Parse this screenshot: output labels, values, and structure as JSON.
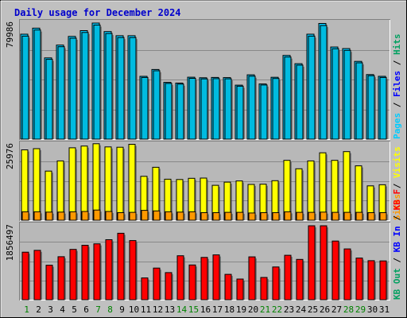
{
  "chart_data": {
    "type": "bar",
    "title": "Daily usage for December 2024",
    "categories": [
      "1",
      "2",
      "3",
      "4",
      "5",
      "6",
      "7",
      "8",
      "9",
      "10",
      "11",
      "12",
      "13",
      "14",
      "15",
      "16",
      "17",
      "18",
      "19",
      "20",
      "21",
      "22",
      "23",
      "24",
      "25",
      "26",
      "27",
      "28",
      "29",
      "30",
      "31"
    ],
    "weekend_categories": [
      "1",
      "7",
      "8",
      "14",
      "15",
      "21",
      "22",
      "28",
      "29"
    ],
    "colors": {
      "background": "#c0c0c0",
      "plot_bg": "#b8b8b8",
      "title": "#0000cc",
      "hits": "#00ccff",
      "files": "#00bbe0",
      "pages": "#00aacc",
      "visits": "#ffff00",
      "sites": "#ff9900",
      "kbf": "#ff0000",
      "weekday_label": "#000000",
      "weekend_label": "#008000"
    },
    "panels": [
      {
        "id": "hits-files-pages",
        "max_label": "79986",
        "ylim": [
          0,
          79986
        ],
        "legend": [
          {
            "text": "Hits",
            "color": "#00a060"
          },
          {
            "text": " / ",
            "color": "#000000"
          },
          {
            "text": "Files",
            "color": "#0000ff"
          },
          {
            "text": " / ",
            "color": "#000000"
          },
          {
            "text": "Pages",
            "color": "#00ccff"
          }
        ],
        "series": [
          {
            "name": "Hits",
            "values": [
              72300,
              76500,
              56000,
              64800,
              70800,
              74800,
              79986,
              74100,
              71300,
              71300,
              43300,
              48000,
              39100,
              38600,
              42700,
              42300,
              42500,
              42400,
              37200,
              44300,
              38000,
              42600,
              57700,
              52000,
              72300,
              79700,
              63500,
              62400,
              53600,
              44500,
              43300
            ]
          },
          {
            "name": "Files",
            "values": [
              71000,
              75200,
              55000,
              63700,
              69600,
              73500,
              78600,
              72800,
              70000,
              70000,
              42500,
              47100,
              38400,
              37900,
              41900,
              41500,
              41700,
              41600,
              36500,
              43400,
              37300,
              41800,
              56600,
              51000,
              71000,
              78300,
              62300,
              61200,
              52600,
              43700,
              42500
            ]
          }
        ]
      },
      {
        "id": "visits-sites",
        "max_label": "25976",
        "ylim": [
          0,
          25976
        ],
        "legend": [
          {
            "text": "Visits",
            "color": "#ffff00"
          },
          {
            "text": " / ",
            "color": "#000000"
          },
          {
            "text": "Sites",
            "color": "#ff9900"
          }
        ],
        "series": [
          {
            "name": "Visits",
            "values": [
              24200,
              24600,
              16900,
              20400,
              24900,
              25500,
              26300,
              25200,
              25100,
              26100,
              15100,
              18200,
              14100,
              14000,
              14400,
              14500,
              12000,
              13100,
              13500,
              12300,
              12400,
              13600,
              20600,
              17700,
              20400,
              23200,
              20600,
              23600,
              18700,
              11800,
              12200
            ]
          },
          {
            "name": "Sites",
            "values": [
              2900,
              2900,
              2800,
              2800,
              2900,
              3000,
              3500,
              3000,
              2600,
              2700,
              3400,
              3200,
              2900,
              2800,
              2900,
              2600,
              2600,
              2700,
              2700,
              2500,
              2600,
              2600,
              2900,
              2700,
              2700,
              2800,
              2700,
              2700,
              2700,
              2600,
              2600
            ]
          }
        ]
      },
      {
        "id": "kbf",
        "max_label": "1856497",
        "ylim": [
          0,
          1856497
        ],
        "legend": [
          {
            "text": "KB F",
            "color": "#ff0000"
          },
          {
            "text": " / ",
            "color": "#000000"
          },
          {
            "text": "KB In",
            "color": "#0000ff"
          },
          {
            "text": " / ",
            "color": "#000000"
          },
          {
            "text": "KB Out",
            "color": "#00a060"
          }
        ],
        "series": [
          {
            "name": "KB F",
            "values": [
              1193000,
              1240000,
              867000,
              1080000,
              1263000,
              1368000,
              1404000,
              1508000,
              1669000,
              1485000,
              547000,
              794000,
              681000,
              1104000,
              873000,
              1061000,
              1126000,
              636000,
              520000,
              1075000,
              559000,
              822000,
              1115000,
              1012000,
              1856497,
              1856497,
              1474000,
              1276000,
              1046000,
              980000,
              974000
            ]
          }
        ]
      }
    ]
  }
}
